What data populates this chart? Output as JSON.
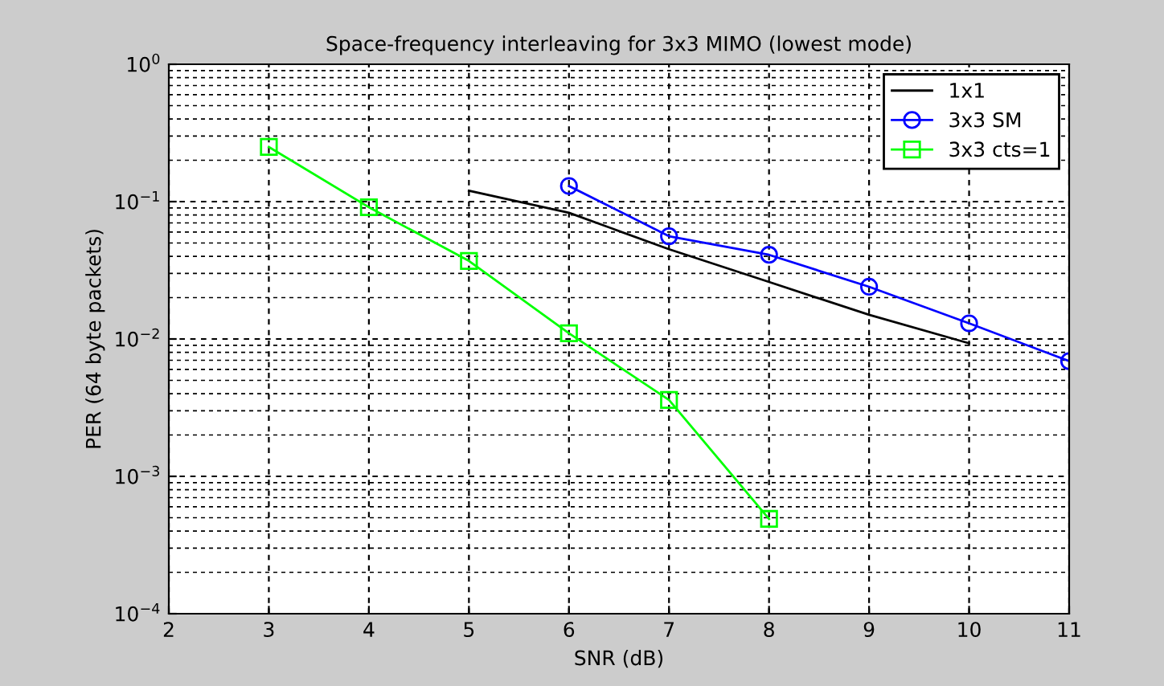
{
  "chart_data": {
    "type": "line",
    "title": "Space-frequency interleaving for 3x3 MIMO (lowest mode)",
    "xlabel": "SNR (dB)",
    "ylabel": "PER (64 byte packets)",
    "log": "y",
    "xlim": [
      2,
      11
    ],
    "xticks": [
      2,
      3,
      4,
      5,
      6,
      7,
      8,
      9,
      10,
      11
    ],
    "ylim": [
      0.0001,
      1
    ],
    "yticks": [
      {
        "value": 0.0001,
        "label": "10$^{−4}$"
      },
      {
        "value": 0.001,
        "label": "10$^{−3}$"
      },
      {
        "value": 0.01,
        "label": "10$^{−2}$"
      },
      {
        "value": 0.1,
        "label": "10$^{−1}$"
      },
      {
        "value": 1,
        "label": "10$^{0}$"
      }
    ],
    "grid": true,
    "legend": "top right",
    "line_style": "solid",
    "series": [
      {
        "name": "1x1",
        "color": "#000000",
        "marker": "none",
        "x": [
          5,
          6,
          7,
          8,
          9,
          10
        ],
        "values": [
          0.12,
          0.083,
          0.045,
          0.026,
          0.015,
          0.0093
        ]
      },
      {
        "name": "3x3 SM",
        "color": "#0000ff",
        "marker": "circle",
        "x": [
          6,
          7,
          8,
          9,
          10,
          11
        ],
        "values": [
          0.13,
          0.056,
          0.041,
          0.024,
          0.013,
          0.0069
        ]
      },
      {
        "name": "3x3 cts=1",
        "color": "#00ff00",
        "marker": "square",
        "x": [
          3,
          4,
          5,
          6,
          7,
          8
        ],
        "values": [
          0.25,
          0.091,
          0.037,
          0.011,
          0.0036,
          0.00049
        ]
      }
    ]
  }
}
